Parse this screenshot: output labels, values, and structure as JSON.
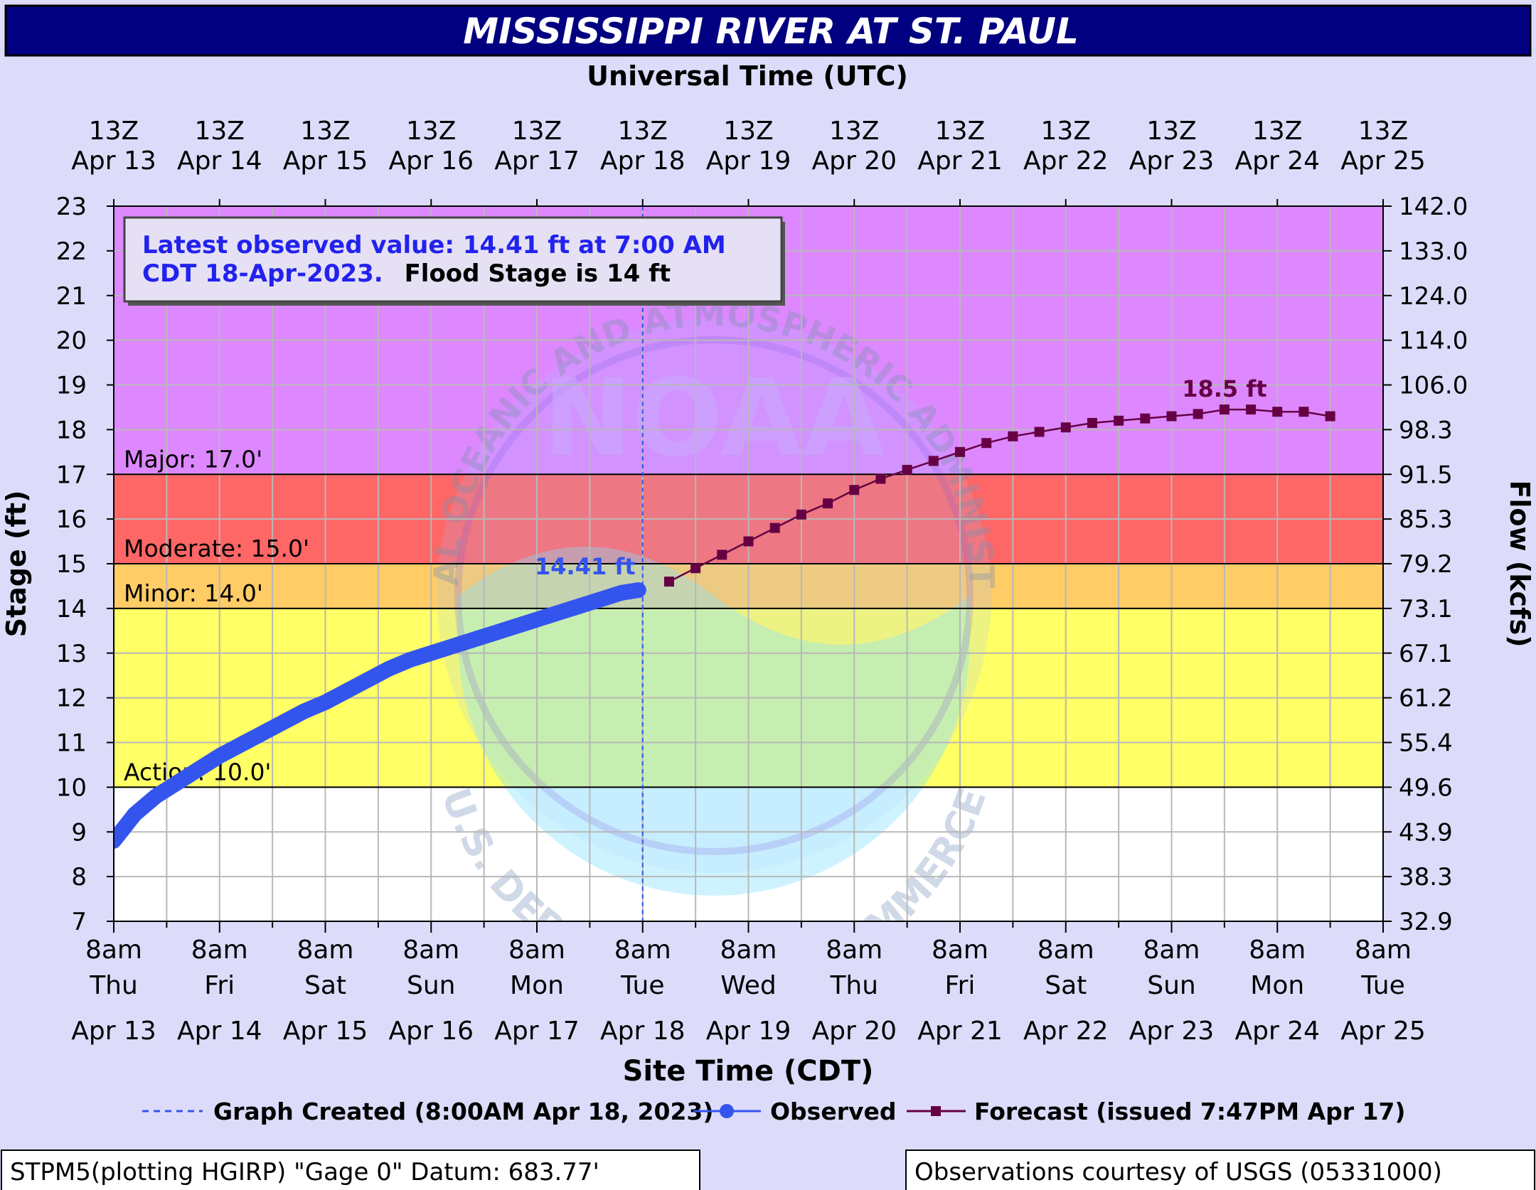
{
  "chart_data": {
    "type": "line",
    "title": "MISSISSIPPI RIVER AT ST. PAUL",
    "top_axis_title": "Universal Time (UTC)",
    "xlabel": "Site Time (CDT)",
    "ylabel": "Stage (ft)",
    "y2label": "Flow (kcfs)",
    "ylim": [
      7,
      23
    ],
    "x_range_days": [
      0,
      12
    ],
    "x_start_label": "8am Thu Apr 13 2023",
    "yticks": [
      7,
      8,
      9,
      10,
      11,
      12,
      13,
      14,
      15,
      16,
      17,
      18,
      19,
      20,
      21,
      22,
      23
    ],
    "flow_ticks": [
      "32.9",
      "38.3",
      "43.9",
      "49.6",
      "55.4",
      "61.2",
      "67.1",
      "73.1",
      "79.2",
      "85.3",
      "91.5",
      "98.3",
      "106.0",
      "114.0",
      "124.0",
      "133.0",
      "142.0"
    ],
    "top_ticks": [
      {
        "line1": "13Z",
        "line2": "Apr 13"
      },
      {
        "line1": "13Z",
        "line2": "Apr 14"
      },
      {
        "line1": "13Z",
        "line2": "Apr 15"
      },
      {
        "line1": "13Z",
        "line2": "Apr 16"
      },
      {
        "line1": "13Z",
        "line2": "Apr 17"
      },
      {
        "line1": "13Z",
        "line2": "Apr 18"
      },
      {
        "line1": "13Z",
        "line2": "Apr 19"
      },
      {
        "line1": "13Z",
        "line2": "Apr 20"
      },
      {
        "line1": "13Z",
        "line2": "Apr 21"
      },
      {
        "line1": "13Z",
        "line2": "Apr 22"
      },
      {
        "line1": "13Z",
        "line2": "Apr 23"
      },
      {
        "line1": "13Z",
        "line2": "Apr 24"
      },
      {
        "line1": "13Z",
        "line2": "Apr 25"
      }
    ],
    "bottom_ticks": [
      {
        "time": "8am",
        "day": "Thu",
        "date": "Apr 13"
      },
      {
        "time": "8am",
        "day": "Fri",
        "date": "Apr 14"
      },
      {
        "time": "8am",
        "day": "Sat",
        "date": "Apr 15"
      },
      {
        "time": "8am",
        "day": "Sun",
        "date": "Apr 16"
      },
      {
        "time": "8am",
        "day": "Mon",
        "date": "Apr 17"
      },
      {
        "time": "8am",
        "day": "Tue",
        "date": "Apr 18"
      },
      {
        "time": "8am",
        "day": "Wed",
        "date": "Apr 19"
      },
      {
        "time": "8am",
        "day": "Thu",
        "date": "Apr 20"
      },
      {
        "time": "8am",
        "day": "Fri",
        "date": "Apr 21"
      },
      {
        "time": "8am",
        "day": "Sat",
        "date": "Apr 22"
      },
      {
        "time": "8am",
        "day": "Sun",
        "date": "Apr 23"
      },
      {
        "time": "8am",
        "day": "Mon",
        "date": "Apr 24"
      },
      {
        "time": "8am",
        "day": "Tue",
        "date": "Apr 25"
      }
    ],
    "flood_categories": [
      {
        "name": "Action",
        "label": "Action: 10.0'",
        "from": 10,
        "to": 14,
        "color": "#ffff66"
      },
      {
        "name": "Minor",
        "label": "Minor: 14.0'",
        "from": 14,
        "to": 15,
        "color": "#ffcc66"
      },
      {
        "name": "Moderate",
        "label": "Moderate: 15.0'",
        "from": 15,
        "to": 17,
        "color": "#ff6666"
      },
      {
        "name": "Major",
        "label": "Major: 17.0'",
        "from": 17,
        "to": 23,
        "color": "#dd88ff"
      }
    ],
    "series": [
      {
        "name": "Observed",
        "color": "#3355ee",
        "x": [
          0,
          0.1,
          0.2,
          0.3,
          0.4,
          0.5,
          0.6,
          0.7,
          0.8,
          0.9,
          1.0,
          1.2,
          1.4,
          1.6,
          1.8,
          2.0,
          2.2,
          2.4,
          2.6,
          2.8,
          3.0,
          3.2,
          3.4,
          3.6,
          3.8,
          4.0,
          4.2,
          4.4,
          4.6,
          4.8,
          4.96
        ],
        "y": [
          8.8,
          9.1,
          9.4,
          9.6,
          9.8,
          9.95,
          10.1,
          10.25,
          10.4,
          10.55,
          10.7,
          10.95,
          11.2,
          11.45,
          11.7,
          11.9,
          12.15,
          12.4,
          12.65,
          12.85,
          13.0,
          13.15,
          13.3,
          13.45,
          13.6,
          13.75,
          13.9,
          14.05,
          14.2,
          14.35,
          14.41
        ]
      },
      {
        "name": "Forecast",
        "color": "#660044",
        "x": [
          5.25,
          5.5,
          5.75,
          6.0,
          6.25,
          6.5,
          6.75,
          7.0,
          7.25,
          7.5,
          7.75,
          8.0,
          8.25,
          8.5,
          8.75,
          9.0,
          9.25,
          9.5,
          9.75,
          10.0,
          10.25,
          10.5,
          10.75,
          11.0,
          11.25,
          11.5
        ],
        "y": [
          14.6,
          14.9,
          15.2,
          15.5,
          15.8,
          16.1,
          16.35,
          16.65,
          16.9,
          17.1,
          17.3,
          17.5,
          17.7,
          17.85,
          17.95,
          18.05,
          18.15,
          18.2,
          18.25,
          18.3,
          18.35,
          18.45,
          18.45,
          18.4,
          18.4,
          18.3
        ]
      }
    ],
    "annotations": {
      "observed_peak_label": "14.41 ft",
      "forecast_peak_label": "18.5 ft",
      "graph_created_x": 5.0
    },
    "legend": {
      "placement": "bottom",
      "graph_created": "Graph Created (8:00AM Apr 18, 2023)",
      "observed": "Observed",
      "forecast": "Forecast (issued 7:47PM Apr 17)"
    }
  },
  "info_box": {
    "line1": "Latest observed value: 14.41 ft at 7:00 AM",
    "line2_blue": "CDT 18-Apr-2023.",
    "line2_black": "Flood Stage is 14 ft"
  },
  "footer": {
    "left": "STPM5(plotting HGIRP) \"Gage 0\" Datum: 683.77'",
    "right": "Observations courtesy of USGS (05331000)"
  },
  "watermark": {
    "top_text": "NATIONAL OCEANIC AND ATMOSPHERIC ADMINISTRATION",
    "center_text": "NOAA",
    "bottom_text": "U.S. DEPARTMENT OF COMMERCE"
  },
  "colors": {
    "title_bar": "#000080",
    "page_bg": "#dcdcfa",
    "observed": "#3355ee",
    "forecast": "#660044"
  }
}
